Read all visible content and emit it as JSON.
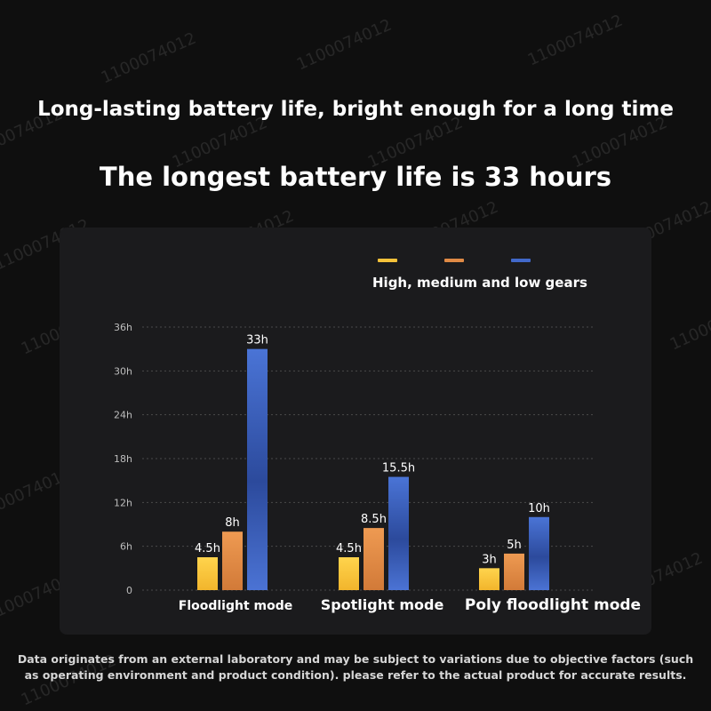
{
  "headline": "Long-lasting battery life, bright enough for a long time",
  "subheadline": "The longest battery life is 33 hours",
  "watermark": "1100074012",
  "colors": {
    "background": "#0f0f0f",
    "panel": "#1b1b1d",
    "high": "#f5c23a",
    "medium": "#e08a45",
    "low": "#4168c9",
    "grid": "#4a4a4a",
    "axis_text": "#bdbdbd"
  },
  "footnote": "Data originates from an external laboratory and may be subject to variations due to objective factors (such as operating environment and product condition). please refer to the actual product for accurate results.",
  "chart_data": {
    "type": "bar",
    "title": "",
    "xlabel": "",
    "ylabel": "",
    "legend_title": "High, medium and low gears",
    "legend_position": "top-right",
    "grid": true,
    "ylim": [
      0,
      36
    ],
    "yticks": [
      0,
      6,
      12,
      18,
      24,
      30,
      36
    ],
    "ytick_labels": [
      "0",
      "6h",
      "12h",
      "18h",
      "24h",
      "30h",
      "36h"
    ],
    "categories": [
      "Floodlight mode",
      "Spotlight mode",
      "Poly floodlight mode"
    ],
    "series": [
      {
        "values": [
          4.5,
          4.5,
          3
        ],
        "labels": [
          "4.5h",
          "4.5h",
          "3h"
        ]
      },
      {
        "values": [
          8,
          8.5,
          5
        ],
        "labels": [
          "8h",
          "8.5h",
          "5h"
        ]
      },
      {
        "values": [
          33,
          15.5,
          10
        ],
        "labels": [
          "33h",
          "15.5h",
          "10h"
        ]
      }
    ]
  }
}
